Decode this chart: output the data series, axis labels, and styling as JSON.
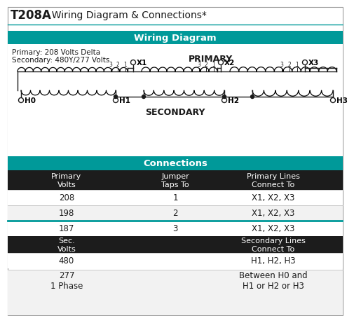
{
  "title_bold": "T208A",
  "title_rest": "  Wiring Diagram & Connections*",
  "section1_header": "Wiring Diagram",
  "section2_header": "Connections",
  "teal_color": "#009999",
  "black_color": "#1a1a1a",
  "white_color": "#ffffff",
  "dark_bg": "#1c1c1c",
  "primary_label": "PRIMARY",
  "secondary_label": "SECONDARY",
  "primary_info_line1": "Primary: 208 Volts Delta",
  "primary_info_line2": "Secondary: 480Y/277 Volts",
  "x_labels": [
    "X1",
    "X2",
    "X3"
  ],
  "h_labels": [
    "H0",
    "H1",
    "H2",
    "H3"
  ],
  "table_col_headers": [
    "Primary\nVolts",
    "Jumper\nTaps To",
    "Primary Lines\nConnect To"
  ],
  "table_rows": [
    [
      "208",
      "1",
      "X1, X2, X3"
    ],
    [
      "198",
      "2",
      "X1, X2, X3"
    ],
    [
      "187",
      "3",
      "X1, X2, X3"
    ]
  ],
  "sec_header_col1": "Sec.\nVolts",
  "sec_header_col3": "Secondary Lines\nConnect To",
  "sec_rows": [
    [
      "480",
      "",
      "H1, H2, H3"
    ],
    [
      "277\n1 Phase",
      "",
      "Between H0 and\nH1 or H2 or H3"
    ]
  ],
  "border_color": "#aaaaaa",
  "teal_line_color": "#00aaaa",
  "row_sep_color": "#bbbbbb"
}
